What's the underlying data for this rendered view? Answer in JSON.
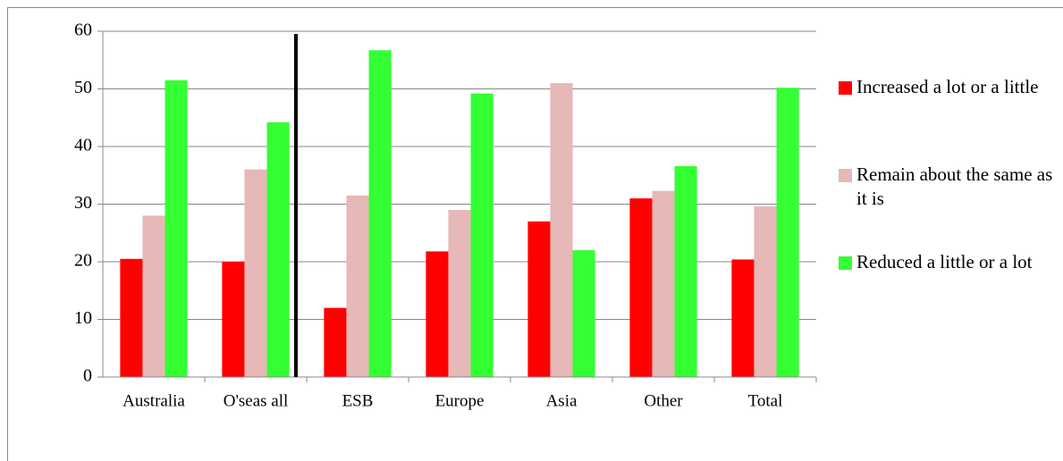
{
  "chart_data": {
    "type": "bar",
    "categories": [
      "Australia",
      "O'seas all",
      "ESB",
      "Europe",
      "Asia",
      "Other",
      "Total"
    ],
    "series": [
      {
        "name": "Increased a lot or a little",
        "color": "#ff0000",
        "values": [
          20.5,
          20,
          12,
          21.8,
          27,
          31,
          20.4
        ]
      },
      {
        "name": "Remain about the same as it is",
        "color": "#e6b8b7",
        "values": [
          28,
          36,
          31.5,
          29,
          51,
          32.3,
          29.6
        ]
      },
      {
        "name": "Reduced a little or a lot",
        "color": "#33ff33",
        "values": [
          51.5,
          44.2,
          56.7,
          49.2,
          22,
          36.6,
          50.2
        ]
      }
    ],
    "ylim": [
      0,
      60
    ],
    "yticks": [
      0,
      10,
      20,
      30,
      40,
      50,
      60
    ],
    "grid": true,
    "legend": "right"
  }
}
